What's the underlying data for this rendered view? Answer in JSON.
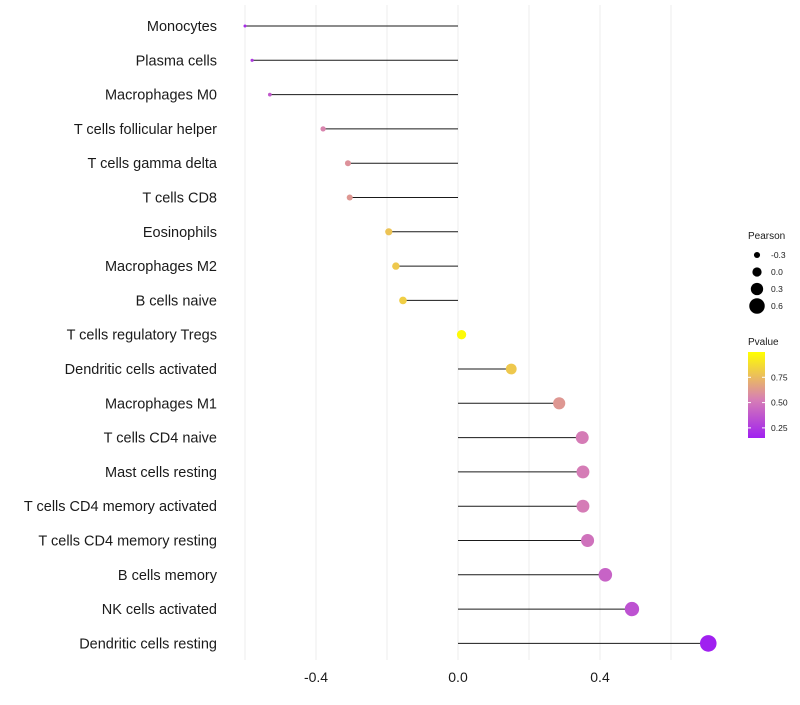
{
  "chart_data": {
    "type": "lollipop",
    "title": "",
    "xlabel": "",
    "ylabel": "",
    "xlim": [
      -0.6,
      0.7
    ],
    "x_ticks": [
      {
        "value": -0.4,
        "label": "-0.4"
      },
      {
        "value": 0.0,
        "label": "0.0"
      },
      {
        "value": 0.4,
        "label": "0.4"
      }
    ],
    "categories": [
      "Monocytes",
      "Plasma cells",
      "Macrophages M0",
      "T cells follicular helper",
      "T cells gamma delta",
      "T cells CD8",
      "Eosinophils",
      "Macrophages M2",
      "B cells naive",
      "T cells regulatory  Tregs ",
      "Dendritic cells activated",
      "Macrophages M1",
      "T cells CD4 naive",
      "Mast cells resting",
      "T cells CD4 memory activated",
      "T cells CD4 memory resting",
      "B cells memory",
      "NK cells activated",
      "Dendritic cells resting"
    ],
    "pearson": [
      -0.6,
      -0.58,
      -0.53,
      -0.38,
      -0.31,
      -0.305,
      -0.195,
      -0.175,
      -0.155,
      0.01,
      0.15,
      0.285,
      0.35,
      0.352,
      0.352,
      0.365,
      0.415,
      0.49,
      0.705
    ],
    "pvalue": [
      0.2,
      0.25,
      0.38,
      0.55,
      0.6,
      0.62,
      0.78,
      0.8,
      0.82,
      0.98,
      0.8,
      0.62,
      0.52,
      0.52,
      0.52,
      0.48,
      0.42,
      0.35,
      0.15
    ],
    "size_legend": {
      "title": "Pearson",
      "entries": [
        {
          "label": "-0.3",
          "value": -0.3
        },
        {
          "label": "0.0",
          "value": 0.0
        },
        {
          "label": "0.3",
          "value": 0.3
        },
        {
          "label": "0.6",
          "value": 0.6
        }
      ]
    },
    "color_legend": {
      "title": "Pvalue",
      "ticks": [
        {
          "label": "0.75",
          "value": 0.75
        },
        {
          "label": "0.50",
          "value": 0.5
        },
        {
          "label": "0.25",
          "value": 0.25
        }
      ],
      "range": [
        0.15,
        1.0
      ],
      "low_color": "#a020f0",
      "mid_color": "#d77fb4",
      "high_color": "#ffff00"
    },
    "grid": true,
    "legend_position": "right"
  }
}
